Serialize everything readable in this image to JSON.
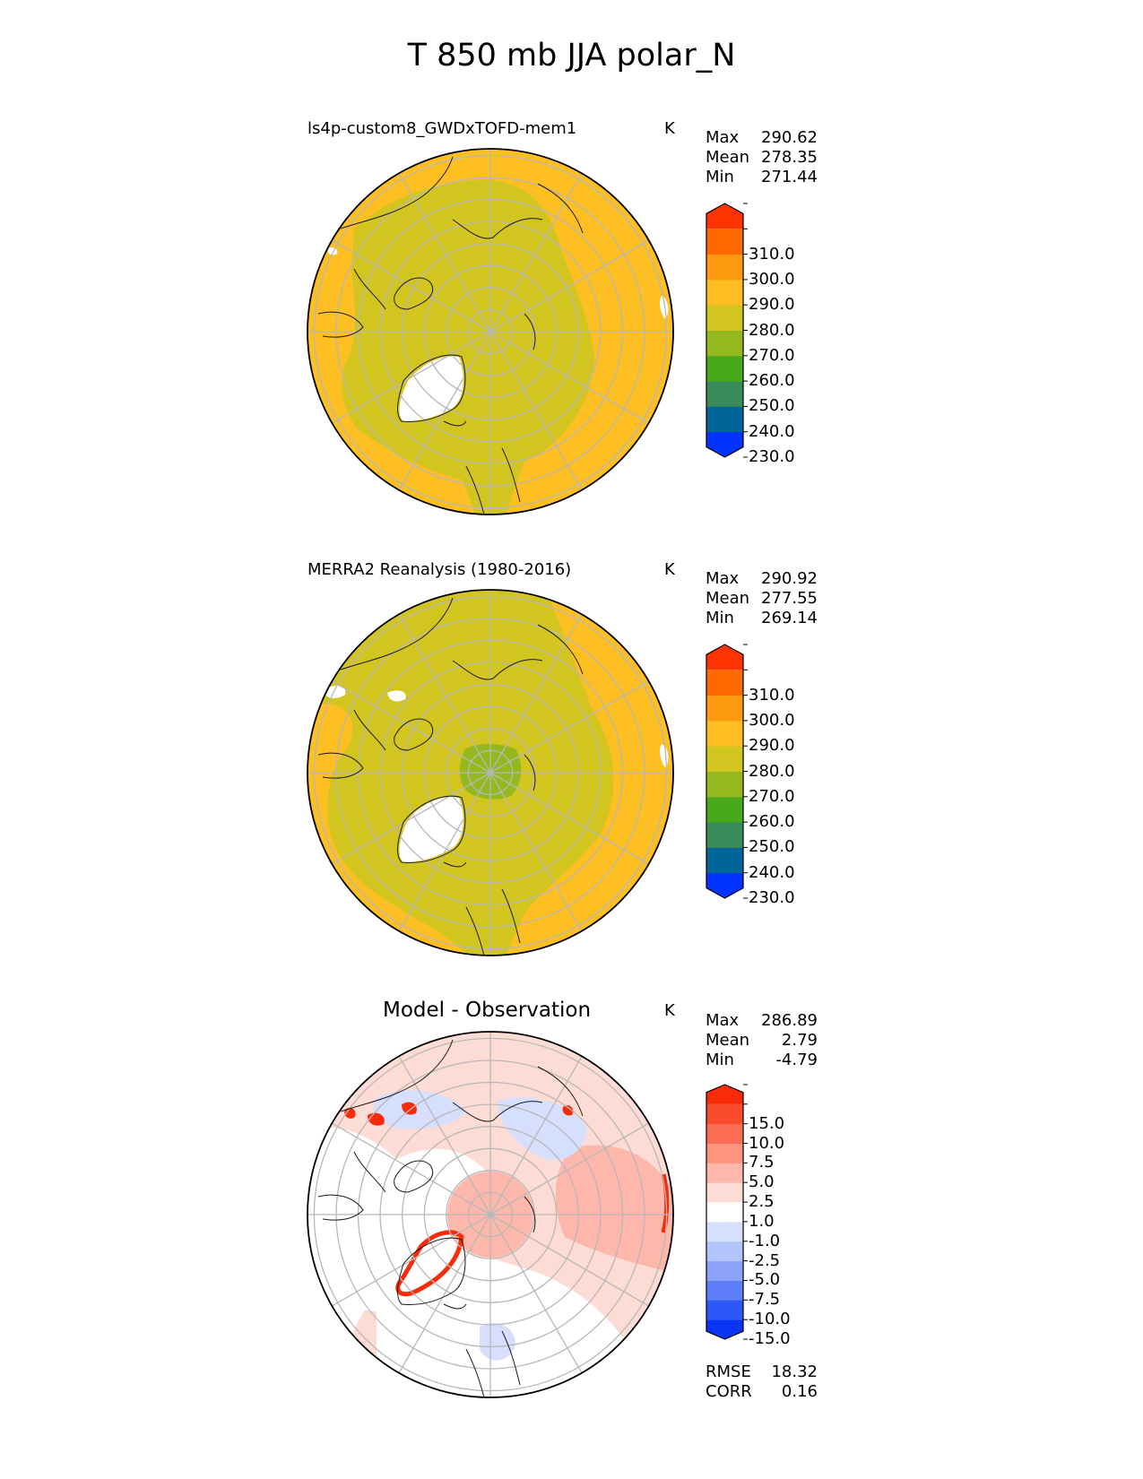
{
  "title": "T 850 mb JJA polar_N",
  "colors": {
    "abs_levels": [
      "#0033ff",
      "#006699",
      "#3a8a5c",
      "#4aa91a",
      "#93b91e",
      "#d3c51f",
      "#fdbf22",
      "#fe9a10",
      "#fe6a00",
      "#ff3300"
    ],
    "diff_levels": [
      "#0a35f5",
      "#2e57f7",
      "#5d7ffa",
      "#8ba3fb",
      "#b3c4fd",
      "#d6dffe",
      "#ffffff",
      "#fedcd6",
      "#fdb8ab",
      "#fc9480",
      "#fb6e55",
      "#fa4b2c",
      "#fa2b08"
    ],
    "graticule": "#b8b8b8",
    "coast": "#1a1a1a",
    "no_data": "#ffffff"
  },
  "chart_data": [
    {
      "type": "heatmap",
      "id": "model",
      "title": "ls4p-custom8_GWDxTOFD-mem1",
      "units": "K",
      "stats": [
        {
          "label": "Max",
          "value": "290.62"
        },
        {
          "label": "Mean",
          "value": "278.35"
        },
        {
          "label": "Min",
          "value": "271.44"
        }
      ],
      "colorbar": {
        "levels": [
          220,
          230,
          240,
          250,
          260,
          270,
          280,
          290,
          300,
          310,
          320
        ],
        "tick_labels": [
          "230.0",
          "240.0",
          "250.0",
          "260.0",
          "270.0",
          "280.0",
          "290.0",
          "300.0",
          "310.0"
        ],
        "extend": "both"
      }
    },
    {
      "type": "heatmap",
      "id": "obs",
      "title": "MERRA2 Reanalysis (1980-2016)",
      "units": "K",
      "stats": [
        {
          "label": "Max",
          "value": "290.92"
        },
        {
          "label": "Mean",
          "value": "277.55"
        },
        {
          "label": "Min",
          "value": "269.14"
        }
      ],
      "colorbar": {
        "levels": [
          220,
          230,
          240,
          250,
          260,
          270,
          280,
          290,
          300,
          310,
          320
        ],
        "tick_labels": [
          "230.0",
          "240.0",
          "250.0",
          "260.0",
          "270.0",
          "280.0",
          "290.0",
          "300.0",
          "310.0"
        ],
        "extend": "both"
      }
    },
    {
      "type": "heatmap",
      "id": "diff",
      "title": "Model - Observation",
      "units": "K",
      "stats": [
        {
          "label": "Max",
          "value": "286.89"
        },
        {
          "label": "Mean",
          "value": "2.79"
        },
        {
          "label": "Min",
          "value": "-4.79"
        }
      ],
      "colorbar": {
        "levels": [
          -20,
          -15,
          -10,
          -7.5,
          -5,
          -2.5,
          -1,
          1,
          2.5,
          5,
          7.5,
          10,
          15,
          20
        ],
        "tick_labels": [
          "-15.0",
          "-10.0",
          "-7.5",
          "-5.0",
          "-2.5",
          "-1.0",
          "1.0",
          "2.5",
          "5.0",
          "7.5",
          "10.0",
          "15.0"
        ],
        "extend": "both"
      },
      "metrics": [
        {
          "label": "RMSE",
          "value": "18.32"
        },
        {
          "label": "CORR",
          "value": "0.16"
        }
      ]
    }
  ]
}
